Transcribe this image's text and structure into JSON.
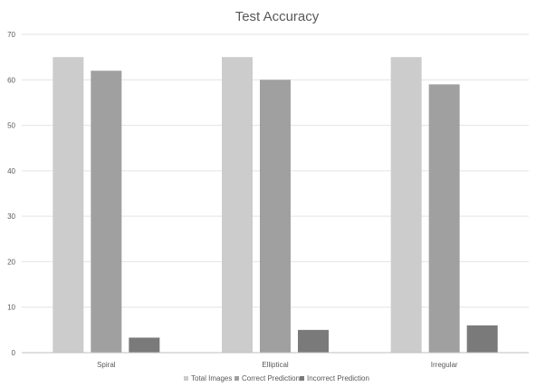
{
  "chart_data": {
    "type": "bar",
    "title": "Test Accuracy",
    "xlabel": "",
    "ylabel": "",
    "categories": [
      "Spiral",
      "Elliptical",
      "Irregular"
    ],
    "series": [
      {
        "name": "Total Images",
        "values": [
          65,
          65,
          65
        ],
        "color": "#cccccc"
      },
      {
        "name": "Correct Prediction",
        "values": [
          62,
          60,
          59
        ],
        "color": "#a0a0a0"
      },
      {
        "name": "Incorrect Prediction",
        "values": [
          3.3,
          5,
          6
        ],
        "color": "#7a7a7a"
      }
    ],
    "ylim": [
      0,
      70
    ],
    "yticks": [
      "0",
      "10",
      "20",
      "30",
      "40",
      "50",
      "60",
      "70"
    ],
    "grid": true,
    "legend_position": "bottom"
  }
}
